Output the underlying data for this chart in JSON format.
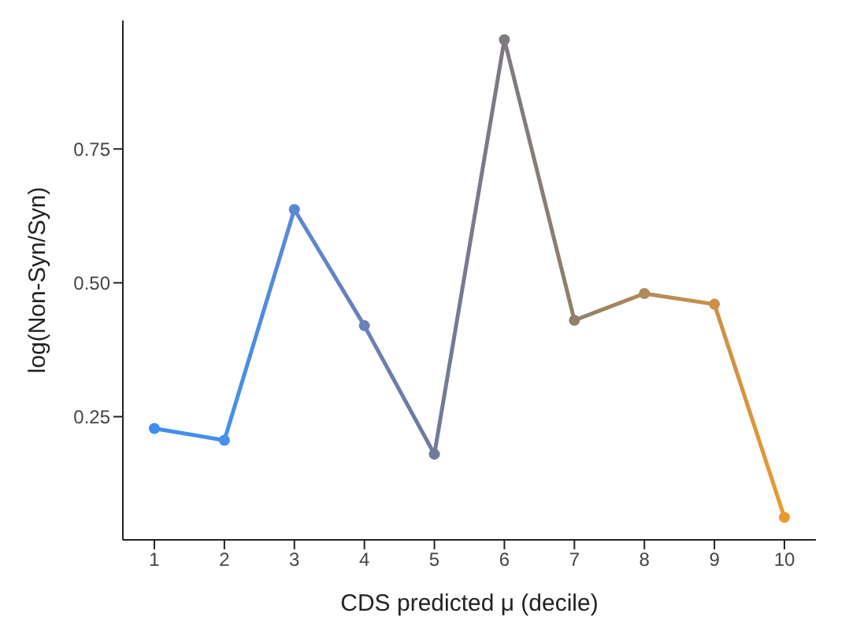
{
  "chart_data": {
    "type": "line",
    "xlabel": "CDS predicted μ (decile)",
    "ylabel": "log(Non-Syn/Syn)",
    "x": [
      1,
      2,
      3,
      4,
      5,
      6,
      7,
      8,
      9,
      10
    ],
    "series": [
      {
        "values": [
          0.228,
          0.206,
          0.637,
          0.42,
          0.18,
          0.954,
          0.43,
          0.48,
          0.46,
          0.062
        ],
        "colors": [
          "#3d8ef0",
          "#4490ec",
          "#5a88d8",
          "#6a80b8",
          "#707a9c",
          "#7f7a80",
          "#90806c",
          "#b08a5a",
          "#cc9048",
          "#e89a30"
        ]
      }
    ],
    "xlim": [
      0.55,
      10.45
    ],
    "xticks": [
      1,
      2,
      3,
      4,
      5,
      6,
      7,
      8,
      9,
      10
    ],
    "ylim": [
      0.02,
      0.99
    ],
    "yticks": [
      {
        "value": 0.25,
        "label": "0.25"
      },
      {
        "value": 0.5,
        "label": "0.50"
      },
      {
        "value": 0.75,
        "label": "0.75"
      }
    ],
    "grid": false,
    "legend": false,
    "marker": "circle",
    "line_style": "solid"
  }
}
